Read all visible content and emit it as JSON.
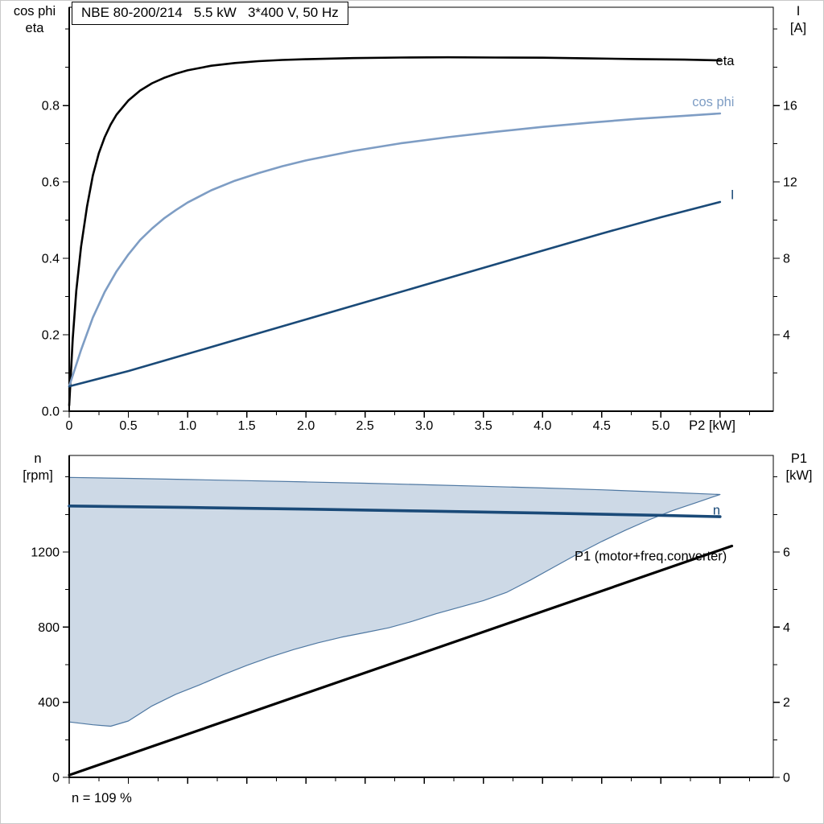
{
  "colors": {
    "black": "#000000",
    "dark_blue": "#1a4a78",
    "light_blue": "#7e9dc4",
    "area_fill": "#cdd9e6",
    "area_edge": "#4f78a2"
  },
  "footer": {
    "note": "n = 109 %"
  },
  "chart_data": [
    {
      "id": "motor-performance-chart",
      "type": "line",
      "title": "NBE 80-200/214   5.5 kW   3*400 V, 50 Hz",
      "x_axis": {
        "label": "P2 [kW]",
        "min": 0,
        "max": 5.95,
        "ticks": [
          0,
          0.5,
          1,
          1.5,
          2,
          2.5,
          3,
          3.5,
          4,
          4.5,
          5,
          5.5
        ],
        "tick_labels": [
          "0",
          "0.5",
          "1.0",
          "1.5",
          "2.0",
          "2.5",
          "3.0",
          "3.5",
          "4.0",
          "4.5",
          "5.0",
          ""
        ],
        "minor_ticks": [
          0.25,
          0.75,
          1.25,
          1.75,
          2.25,
          2.75,
          3.25,
          3.75,
          4.25,
          4.75,
          5.25,
          5.75
        ]
      },
      "y_left": {
        "title_lines": [
          "cos phi",
          "eta"
        ],
        "min": 0,
        "max": 1.057,
        "ticks": [
          0,
          0.2,
          0.4,
          0.6,
          0.8
        ],
        "tick_labels": [
          "0.0",
          "0.2",
          "0.4",
          "0.6",
          "0.8"
        ],
        "minor_ticks": [
          0.1,
          0.3,
          0.5,
          0.7,
          0.9,
          1.0
        ]
      },
      "y_right": {
        "title_lines": [
          "I",
          "[A]"
        ],
        "min": 0,
        "max": 21.14,
        "ticks": [
          4,
          8,
          12,
          16
        ],
        "tick_labels": [
          "4",
          "8",
          "12",
          "16"
        ],
        "minor_ticks": [
          2,
          6,
          10,
          14,
          18,
          20
        ]
      },
      "series": [
        {
          "key": "eta-curve",
          "name": "eta",
          "axis": "left",
          "color_key": "black",
          "width": 2.6,
          "points": [
            [
              0,
              0.015
            ],
            [
              0.03,
              0.19
            ],
            [
              0.06,
              0.315
            ],
            [
              0.1,
              0.43
            ],
            [
              0.15,
              0.535
            ],
            [
              0.2,
              0.617
            ],
            [
              0.25,
              0.675
            ],
            [
              0.3,
              0.717
            ],
            [
              0.35,
              0.75
            ],
            [
              0.4,
              0.776
            ],
            [
              0.5,
              0.813
            ],
            [
              0.6,
              0.839
            ],
            [
              0.7,
              0.858
            ],
            [
              0.8,
              0.872
            ],
            [
              0.9,
              0.883
            ],
            [
              1.0,
              0.892
            ],
            [
              1.2,
              0.904
            ],
            [
              1.4,
              0.911
            ],
            [
              1.6,
              0.916
            ],
            [
              1.8,
              0.919
            ],
            [
              2.0,
              0.921
            ],
            [
              2.4,
              0.924
            ],
            [
              2.8,
              0.9255
            ],
            [
              3.2,
              0.926
            ],
            [
              3.6,
              0.9255
            ],
            [
              4.0,
              0.925
            ],
            [
              4.4,
              0.923
            ],
            [
              4.8,
              0.9215
            ],
            [
              5.2,
              0.92
            ],
            [
              5.5,
              0.918
            ]
          ]
        },
        {
          "key": "cos-phi-curve",
          "name": "cos phi",
          "axis": "left",
          "color_key": "light_blue",
          "width": 2.6,
          "points": [
            [
              0,
              0.065
            ],
            [
              0.1,
              0.16
            ],
            [
              0.2,
              0.245
            ],
            [
              0.3,
              0.312
            ],
            [
              0.4,
              0.366
            ],
            [
              0.5,
              0.41
            ],
            [
              0.6,
              0.448
            ],
            [
              0.7,
              0.478
            ],
            [
              0.8,
              0.504
            ],
            [
              0.9,
              0.526
            ],
            [
              1.0,
              0.546
            ],
            [
              1.2,
              0.578
            ],
            [
              1.4,
              0.603
            ],
            [
              1.6,
              0.623
            ],
            [
              1.8,
              0.641
            ],
            [
              2.0,
              0.656
            ],
            [
              2.4,
              0.681
            ],
            [
              2.8,
              0.701
            ],
            [
              3.2,
              0.717
            ],
            [
              3.6,
              0.731
            ],
            [
              4.0,
              0.744
            ],
            [
              4.4,
              0.755
            ],
            [
              4.8,
              0.765
            ],
            [
              5.2,
              0.773
            ],
            [
              5.5,
              0.779
            ]
          ]
        },
        {
          "key": "current-curve",
          "name": "I",
          "axis": "right",
          "color_key": "dark_blue",
          "width": 2.6,
          "points": [
            [
              0,
              1.3
            ],
            [
              0.5,
              2.1
            ],
            [
              1.0,
              3.0
            ],
            [
              1.5,
              3.9
            ],
            [
              2.0,
              4.8
            ],
            [
              2.5,
              5.7
            ],
            [
              3.0,
              6.6
            ],
            [
              3.5,
              7.5
            ],
            [
              4.0,
              8.4
            ],
            [
              4.5,
              9.3
            ],
            [
              5.0,
              10.15
            ],
            [
              5.5,
              10.95
            ]
          ]
        }
      ],
      "annotations": [
        {
          "key": "eta-label",
          "text": "eta",
          "x": 5.62,
          "y": 0.905,
          "axis": "left",
          "anchor": "end",
          "color_key": "black"
        },
        {
          "key": "cos-phi-label",
          "text": "cos phi",
          "x": 5.62,
          "y": 0.798,
          "axis": "left",
          "anchor": "end",
          "color_key": "light_blue"
        },
        {
          "key": "current-label",
          "text": "I",
          "x": 5.62,
          "y": 11.1,
          "axis": "right",
          "anchor": "end",
          "color_key": "dark_blue"
        },
        {
          "key": "x-axis-label",
          "text": "P2 [kW]",
          "x": 5.63,
          "anchor": "end",
          "color_key": "black",
          "below_axis": true
        }
      ]
    },
    {
      "id": "speed-power-chart",
      "type": "line",
      "title": "",
      "x_axis": {
        "label": "",
        "min": 0,
        "max": 5.95,
        "ticks": [
          0,
          0.5,
          1,
          1.5,
          2,
          2.5,
          3,
          3.5,
          4,
          4.5,
          5,
          5.5
        ],
        "tick_labels": [],
        "minor_ticks": [
          0.25,
          0.75,
          1.25,
          1.75,
          2.25,
          2.75,
          3.25,
          3.75,
          4.25,
          4.75,
          5.25,
          5.75
        ]
      },
      "y_left": {
        "title_lines": [
          "n",
          "[rpm]"
        ],
        "min": 0,
        "max": 1714,
        "ticks": [
          0,
          400,
          800,
          1200
        ],
        "tick_labels": [
          "0",
          "400",
          "800",
          "1200"
        ],
        "minor_ticks": [
          200,
          600,
          1000,
          1400,
          1600
        ]
      },
      "y_right": {
        "title_lines": [
          "P1",
          "[kW]"
        ],
        "min": 0,
        "max": 8.57,
        "ticks": [
          0,
          2,
          4,
          6
        ],
        "tick_labels": [
          "0",
          "2",
          "4",
          "6"
        ],
        "minor_ticks": [
          1,
          3,
          5,
          7,
          8
        ]
      },
      "series": [
        {
          "key": "speed-range-area",
          "name": "speed range",
          "type": "area",
          "axis": "left",
          "fill_key": "area_fill",
          "edge_key": "area_edge",
          "upper": [
            [
              0,
              1597
            ],
            [
              0.5,
              1592
            ],
            [
              1.0,
              1586
            ],
            [
              1.5,
              1580
            ],
            [
              2.0,
              1573
            ],
            [
              2.5,
              1566
            ],
            [
              3.0,
              1558
            ],
            [
              3.5,
              1550
            ],
            [
              4.0,
              1541
            ],
            [
              4.5,
              1531
            ],
            [
              5.0,
              1519
            ],
            [
              5.5,
              1506
            ]
          ],
          "lower": [
            [
              0,
              295
            ],
            [
              0.2,
              280
            ],
            [
              0.35,
              272
            ],
            [
              0.5,
              300
            ],
            [
              0.7,
              380
            ],
            [
              0.9,
              442
            ],
            [
              1.1,
              492
            ],
            [
              1.3,
              546
            ],
            [
              1.5,
              596
            ],
            [
              1.7,
              641
            ],
            [
              1.9,
              681
            ],
            [
              2.1,
              716
            ],
            [
              2.3,
              746
            ],
            [
              2.5,
              771
            ],
            [
              2.7,
              796
            ],
            [
              2.9,
              831
            ],
            [
              3.1,
              871
            ],
            [
              3.3,
              906
            ],
            [
              3.5,
              941
            ],
            [
              3.7,
              986
            ],
            [
              3.9,
              1051
            ],
            [
              4.1,
              1121
            ],
            [
              4.3,
              1191
            ],
            [
              4.5,
              1256
            ],
            [
              4.7,
              1316
            ],
            [
              4.9,
              1371
            ],
            [
              5.1,
              1421
            ],
            [
              5.3,
              1463
            ],
            [
              5.5,
              1506
            ]
          ]
        },
        {
          "key": "speed-curve",
          "name": "n",
          "axis": "left",
          "color_key": "dark_blue",
          "width": 3.6,
          "points": [
            [
              0,
              1445
            ],
            [
              1.0,
              1437
            ],
            [
              2.0,
              1428
            ],
            [
              3.0,
              1418
            ],
            [
              4.0,
              1407
            ],
            [
              5.0,
              1395
            ],
            [
              5.5,
              1388
            ]
          ]
        },
        {
          "key": "p1-curve",
          "name": "P1 (motor+freq.converter)",
          "axis": "right",
          "color_key": "black",
          "width": 3.2,
          "points": [
            [
              0,
              0.06
            ],
            [
              5.6,
              6.16
            ]
          ]
        }
      ],
      "annotations": [
        {
          "key": "speed-label",
          "text": "n",
          "x": 5.47,
          "y": 1400,
          "axis": "left",
          "anchor": "middle",
          "color_key": "dark_blue"
        },
        {
          "key": "p1-label",
          "text": "P1 (motor+freq.converter)",
          "x": 4.27,
          "y": 1155,
          "axis": "left",
          "anchor": "start",
          "color_key": "black"
        }
      ]
    }
  ]
}
